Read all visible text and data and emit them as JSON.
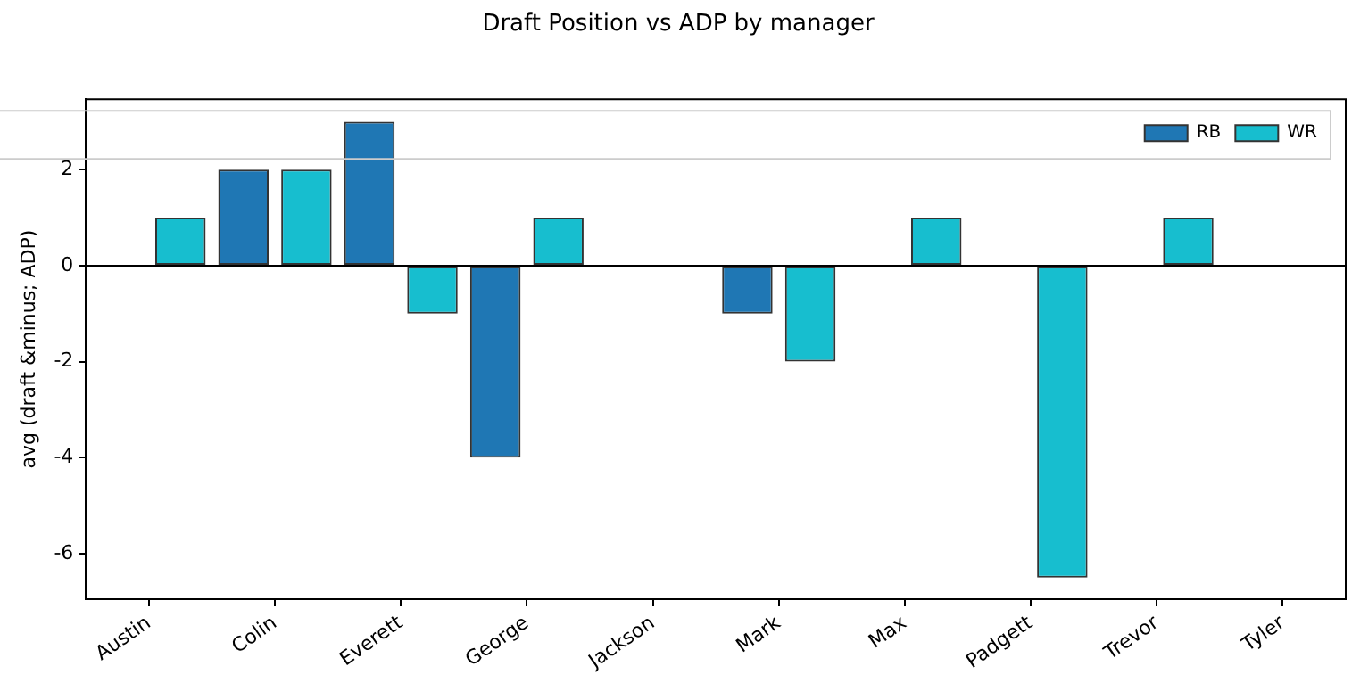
{
  "chart_data": {
    "type": "bar",
    "title": "Draft Position vs ADP by manager",
    "ylabel": "avg (draft &minus; ADP)",
    "categories": [
      "Austin",
      "Colin",
      "Everett",
      "George",
      "Jackson",
      "Mark",
      "Max",
      "Padgett",
      "Trevor",
      "Tyler"
    ],
    "series": [
      {
        "name": "RB",
        "color": "#1f77b4",
        "values": [
          0,
          2,
          3,
          -4,
          0,
          -1,
          0,
          0,
          0,
          0
        ]
      },
      {
        "name": "WR",
        "color": "#17becf",
        "values": [
          1,
          2,
          -1,
          1,
          0,
          -2,
          1,
          -6.5,
          1,
          0
        ]
      }
    ],
    "ylim": [
      -6.95,
      3.47
    ],
    "yticks": [
      -6,
      -4,
      -2,
      0,
      2
    ],
    "grid": false,
    "legend": "top right",
    "ref_lines": [
      {
        "axis": "y",
        "value": 0,
        "color": "#000000"
      }
    ]
  }
}
